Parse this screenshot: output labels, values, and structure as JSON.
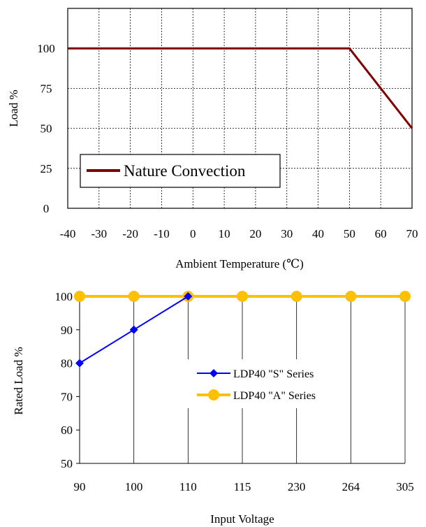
{
  "chart_data": [
    {
      "type": "line",
      "title": "",
      "xlabel": "Ambient Temperature (℃)",
      "ylabel": "Load %",
      "xlim": [
        -40,
        70
      ],
      "ylim": [
        0,
        125
      ],
      "x_ticks": [
        "-40",
        "-30",
        "-20",
        "-10",
        "0",
        "10",
        "20",
        "30",
        "40",
        "50",
        "60",
        "70"
      ],
      "y_ticks": [
        "0",
        "25",
        "50",
        "75",
        "100"
      ],
      "grid": "dotted",
      "legend": "lower-left",
      "series": [
        {
          "name": "Nature Convection",
          "color": "#7f0000",
          "x": [
            -40,
            50,
            70
          ],
          "y": [
            100,
            100,
            50
          ]
        }
      ]
    },
    {
      "type": "line",
      "title": "",
      "xlabel": "Input Voltage",
      "ylabel": "Rated Load %",
      "categories": [
        "90",
        "100",
        "110",
        "115",
        "230",
        "264",
        "305"
      ],
      "ylim": [
        50,
        100
      ],
      "y_ticks": [
        "50",
        "60",
        "70",
        "80",
        "90",
        "100"
      ],
      "grid": "vertical",
      "legend": "center-right",
      "series": [
        {
          "name": "LDP40 \"S\" Series",
          "color": "#0000ff",
          "marker": "diamond",
          "values": [
            80,
            90,
            100,
            null,
            null,
            null,
            null
          ]
        },
        {
          "name": "LDP40 \"A\" Series",
          "color": "#ffc000",
          "marker": "circle",
          "values": [
            100,
            100,
            100,
            100,
            100,
            100,
            100
          ]
        }
      ]
    }
  ]
}
